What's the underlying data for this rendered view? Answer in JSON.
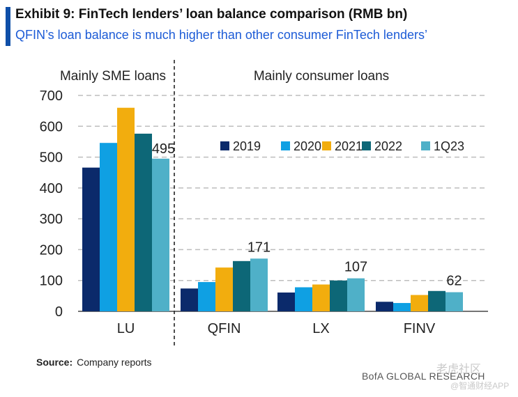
{
  "header": {
    "title": "Exhibit 9: FinTech lenders’ loan balance comparison (RMB bn)",
    "subtitle": "QFIN’s loan balance is much higher than other consumer FinTech lenders’"
  },
  "chart_data": {
    "type": "bar",
    "categories": [
      "LU",
      "QFIN",
      "LX",
      "FINV"
    ],
    "series": [
      {
        "name": "2019",
        "color": "#0b2a6b",
        "values": [
          466,
          74,
          61,
          31
        ]
      },
      {
        "name": "2020",
        "color": "#0fa0e3",
        "values": [
          546,
          95,
          78,
          27
        ]
      },
      {
        "name": "2021",
        "color": "#f2ad0e",
        "values": [
          660,
          142,
          87,
          53
        ]
      },
      {
        "name": "2022",
        "color": "#0d6777",
        "values": [
          576,
          163,
          100,
          66
        ]
      },
      {
        "name": "1Q23",
        "color": "#4fb0c8",
        "values": [
          495,
          171,
          107,
          62
        ]
      }
    ],
    "data_labels": [
      "495",
      "171",
      "107",
      "62"
    ],
    "yticks": [
      0,
      100,
      200,
      300,
      400,
      500,
      600,
      700
    ],
    "ylim": [
      0,
      700
    ],
    "group_labels": [
      "Mainly SME loans",
      "Mainly consumer loans"
    ],
    "grid": true,
    "legend": "top-right"
  },
  "footer": {
    "source_label": "Source:",
    "source_text": "Company reports",
    "brand": "BofA GLOBAL RESEARCH"
  },
  "watermark": {
    "line1": "老虎社区",
    "line2": "@智通财经APP"
  }
}
